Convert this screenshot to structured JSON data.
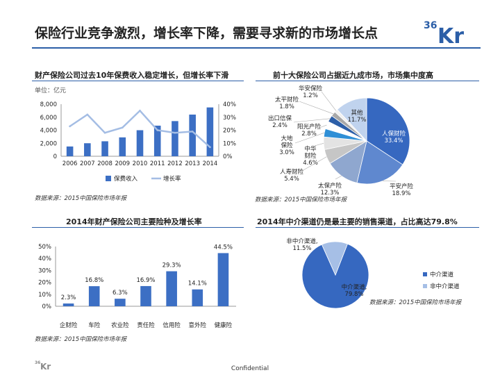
{
  "page": {
    "title": "保险行业竞争激烈，增长率下降，需要寻求新的市场增长点",
    "logo_text": "36Kr",
    "footer": "Confidential",
    "colors": {
      "primary": "#2b5ea7",
      "bar": "#3c6fc4",
      "line": "#a4bde4"
    }
  },
  "panels": {
    "p1": {
      "title": "财产保险公司过去10年保费收入稳定增长，但增长率下滑",
      "unit": "单位：亿元",
      "source": "数据来源：2015中国保险市场年报"
    },
    "p2": {
      "title": "前十大保险公司占据近九成市场，市场集中度高",
      "source": "数据来源：2015中国保险市场年报"
    },
    "p3": {
      "title": "2014年财产保险公司主要险种及增长率",
      "source": "数据来源：2015中国保险市场年报"
    },
    "p4": {
      "title": "2014年中介渠道仍是最主要的销售渠道，占比高达79.8%",
      "source": "数据来源：2015中国保险市场年报"
    }
  },
  "chart_data": [
    {
      "type": "bar",
      "categories": [
        "2006",
        "2007",
        "2008",
        "2009",
        "2010",
        "2011",
        "2012",
        "2013",
        "2014"
      ],
      "series": [
        {
          "name": "保费收入",
          "type": "bar",
          "axis": "left",
          "values": [
            1500,
            2000,
            2300,
            2900,
            4000,
            4700,
            5400,
            6400,
            7500
          ]
        },
        {
          "name": "增长率",
          "type": "line",
          "axis": "right",
          "values": [
            23,
            32,
            18,
            22,
            35,
            20,
            18,
            19,
            7
          ]
        }
      ],
      "y_left": {
        "ticks": [
          "0",
          "2,000",
          "4,000",
          "6,000",
          "8,000"
        ],
        "lim": [
          0,
          8000
        ]
      },
      "y_right": {
        "ticks": [
          "0%",
          "10%",
          "20%",
          "30%",
          "40%"
        ],
        "lim": [
          0,
          40
        ]
      },
      "legend": "bottom",
      "grid": false
    },
    {
      "type": "pie",
      "slices": [
        {
          "label": "人保财险",
          "value": "33.4%",
          "pct": 33.4,
          "color": "#3668c0"
        },
        {
          "label": "平安产险",
          "value": "18.9%",
          "pct": 18.9,
          "color": "#5f88cf"
        },
        {
          "label": "太保产险",
          "value": "12.3%",
          "pct": 12.3,
          "color": "#8fa7cf"
        },
        {
          "label": "人寿财险",
          "value": "5.4%",
          "pct": 5.4,
          "color": "#c6c6c6"
        },
        {
          "label": "中华财险",
          "value": "4.6%",
          "pct": 4.6,
          "color": "#e3e3e3"
        },
        {
          "label": "大地保险",
          "value": "3.0%",
          "pct": 3.0,
          "color": "#2f8fd6"
        },
        {
          "label": "阳光产险",
          "value": "2.8%",
          "pct": 2.8,
          "color": "#ffffff"
        },
        {
          "label": "出口信保",
          "value": "2.4%",
          "pct": 2.4,
          "color": "#2d5fa8"
        },
        {
          "label": "太平财险",
          "value": "1.8%",
          "pct": 1.8,
          "color": "#a8a8a8"
        },
        {
          "label": "华安保险",
          "value": "1.2%",
          "pct": 1.2,
          "color": "#f0f0f0"
        },
        {
          "label": "其他",
          "value": "11.7%",
          "pct": 11.7,
          "color": "#c0d3ee"
        }
      ]
    },
    {
      "type": "bar",
      "categories": [
        "企财险",
        "车险",
        "农业险",
        "责任险",
        "信用险",
        "意外险",
        "健康险"
      ],
      "values": [
        2.3,
        16.8,
        6.3,
        16.9,
        29.3,
        14.1,
        44.5
      ],
      "labels": [
        "2.3%",
        "16.8%",
        "6.3%",
        "16.9%",
        "29.3%",
        "14.1%",
        "44.5%"
      ],
      "y_ticks": [
        "0%",
        "10%",
        "20%",
        "30%",
        "40%",
        "50%"
      ],
      "ylim": [
        0,
        50
      ]
    },
    {
      "type": "pie",
      "slices": [
        {
          "label": "中介渠道",
          "value": "79.8%",
          "pct": 79.8,
          "color": "#3668c0"
        },
        {
          "label": "非中介渠道",
          "value": "11.5%",
          "pct": 11.5,
          "color": "#a6bfe6"
        }
      ],
      "legend": [
        "中介渠道",
        "非中介渠道"
      ]
    }
  ]
}
